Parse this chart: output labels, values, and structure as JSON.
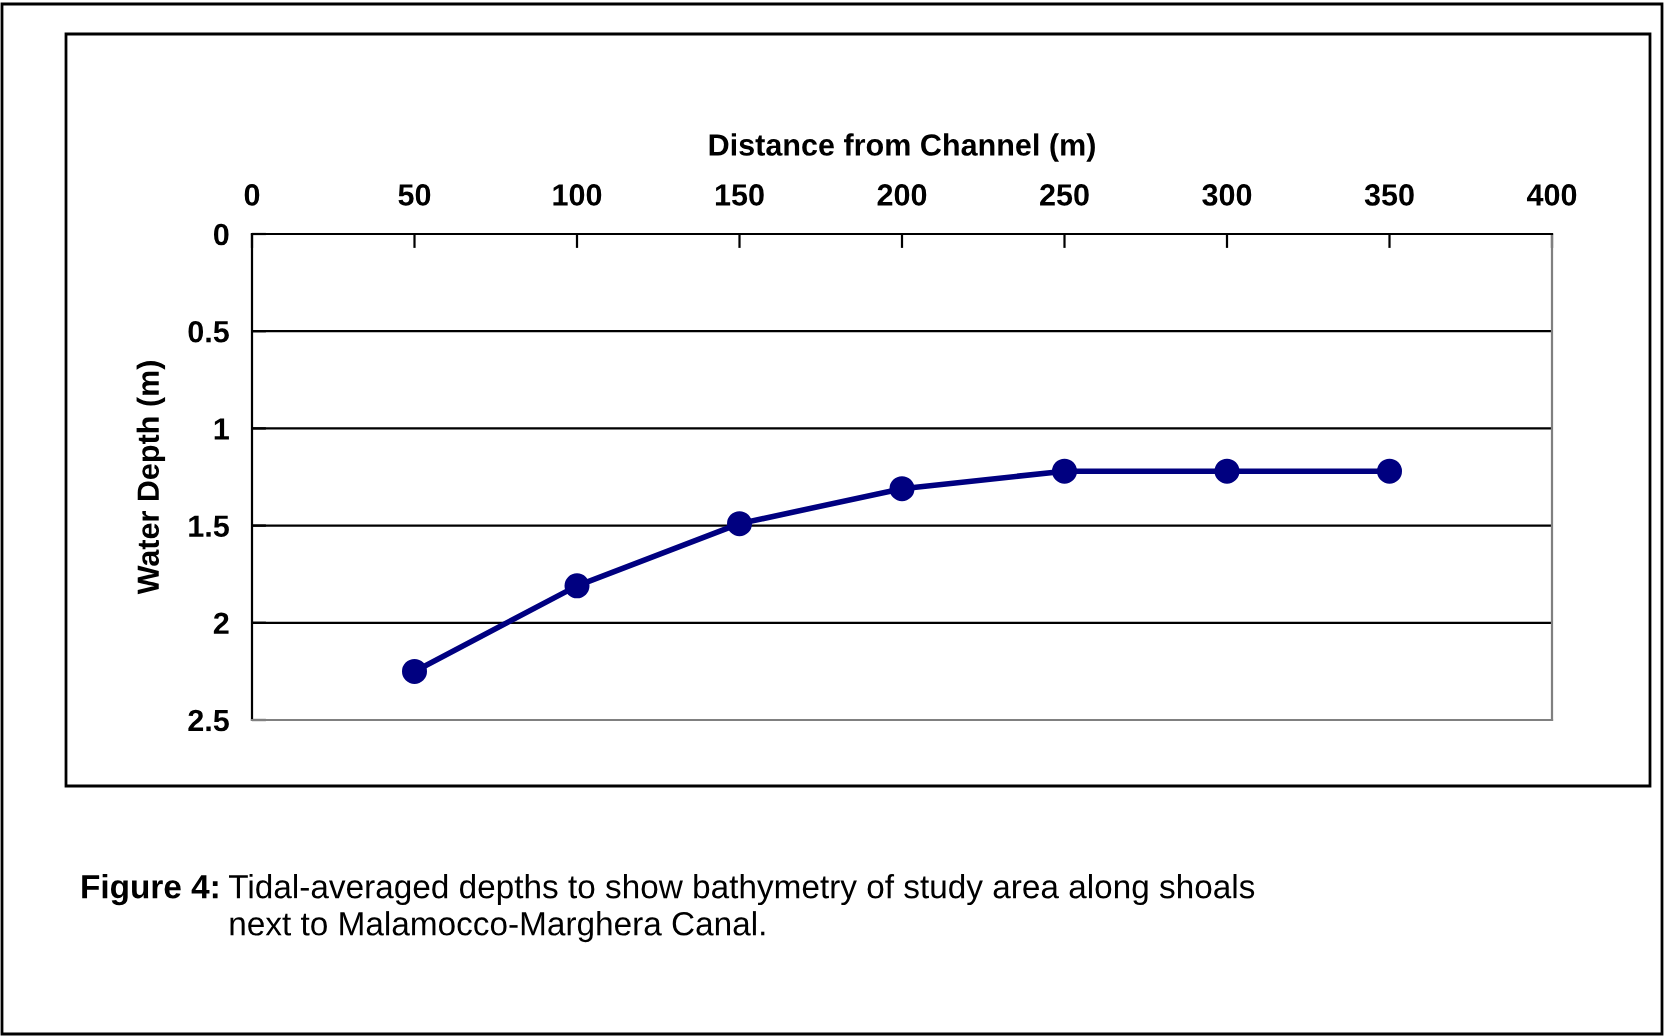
{
  "chart_data": {
    "type": "line",
    "xlabel": "Distance from Channel (m)",
    "ylabel": "Water Depth (m)",
    "x": [
      50,
      100,
      150,
      200,
      250,
      300,
      350
    ],
    "series": [
      {
        "color": "#000080",
        "values": [
          2.25,
          1.81,
          1.49,
          1.31,
          1.22,
          1.22,
          1.22
        ]
      }
    ],
    "xlim": [
      0,
      400
    ],
    "xticks": [
      0,
      50,
      100,
      150,
      200,
      250,
      300,
      350,
      400
    ],
    "ylim": [
      2.5,
      0
    ],
    "yticks": [
      0,
      0.5,
      1,
      1.5,
      2,
      2.5
    ],
    "grid": "y",
    "marker": "circle",
    "line_style": "solid",
    "annotations": [
      "Figure 4:",
      "Tidal-averaged depths to show bathymetry of study area along shoals\nnext to Malamocco-Marghera Canal."
    ]
  }
}
